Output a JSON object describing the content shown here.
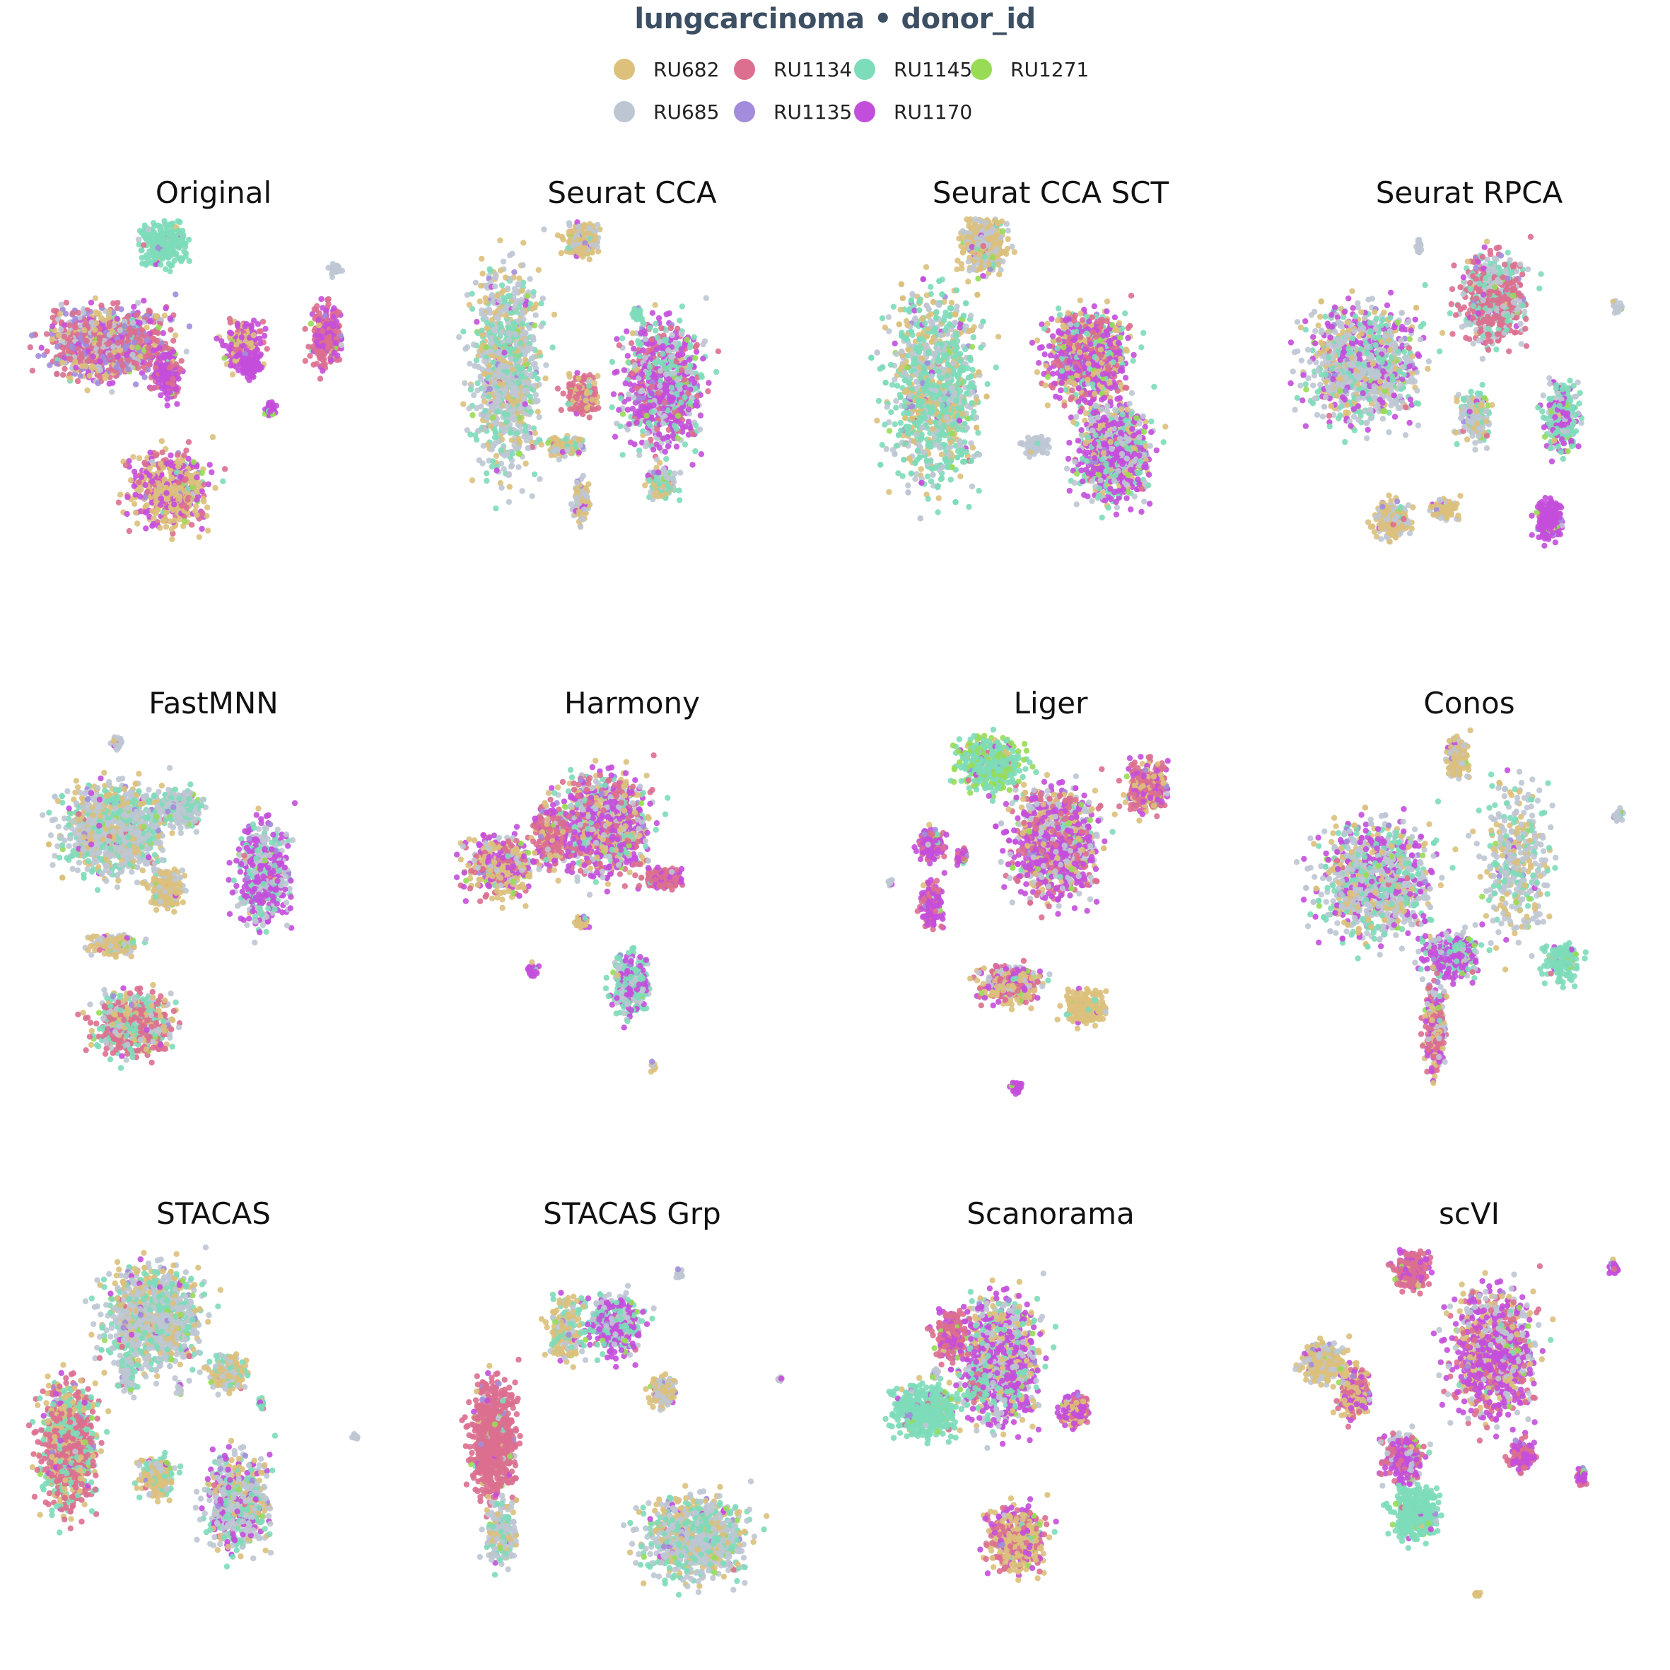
{
  "title": "lungcarcinoma • donor_id",
  "legend": [
    {
      "label": "RU682",
      "color": "#dcc07c"
    },
    {
      "label": "RU1134",
      "color": "#dc6f8f"
    },
    {
      "label": "RU1145",
      "color": "#7ddcb9"
    },
    {
      "label": "RU1271",
      "color": "#98dc55"
    },
    {
      "label": "RU685",
      "color": "#bec6d3"
    },
    {
      "label": "RU1135",
      "color": "#a28cdc"
    },
    {
      "label": "RU1170",
      "color": "#c44edc"
    }
  ],
  "chart_data": [
    {
      "type": "scatter",
      "title": "Original"
    },
    {
      "type": "scatter",
      "title": "Seurat CCA"
    },
    {
      "type": "scatter",
      "title": "Seurat CCA SCT"
    },
    {
      "type": "scatter",
      "title": "Seurat RPCA"
    },
    {
      "type": "scatter",
      "title": "FastMNN"
    },
    {
      "type": "scatter",
      "title": "Harmony"
    },
    {
      "type": "scatter",
      "title": "Liger"
    },
    {
      "type": "scatter",
      "title": "Conos"
    },
    {
      "type": "scatter",
      "title": "STACAS"
    },
    {
      "type": "scatter",
      "title": "STACAS Grp"
    },
    {
      "type": "scatter",
      "title": "Scanorama"
    },
    {
      "type": "scatter",
      "title": "scVI"
    }
  ]
}
